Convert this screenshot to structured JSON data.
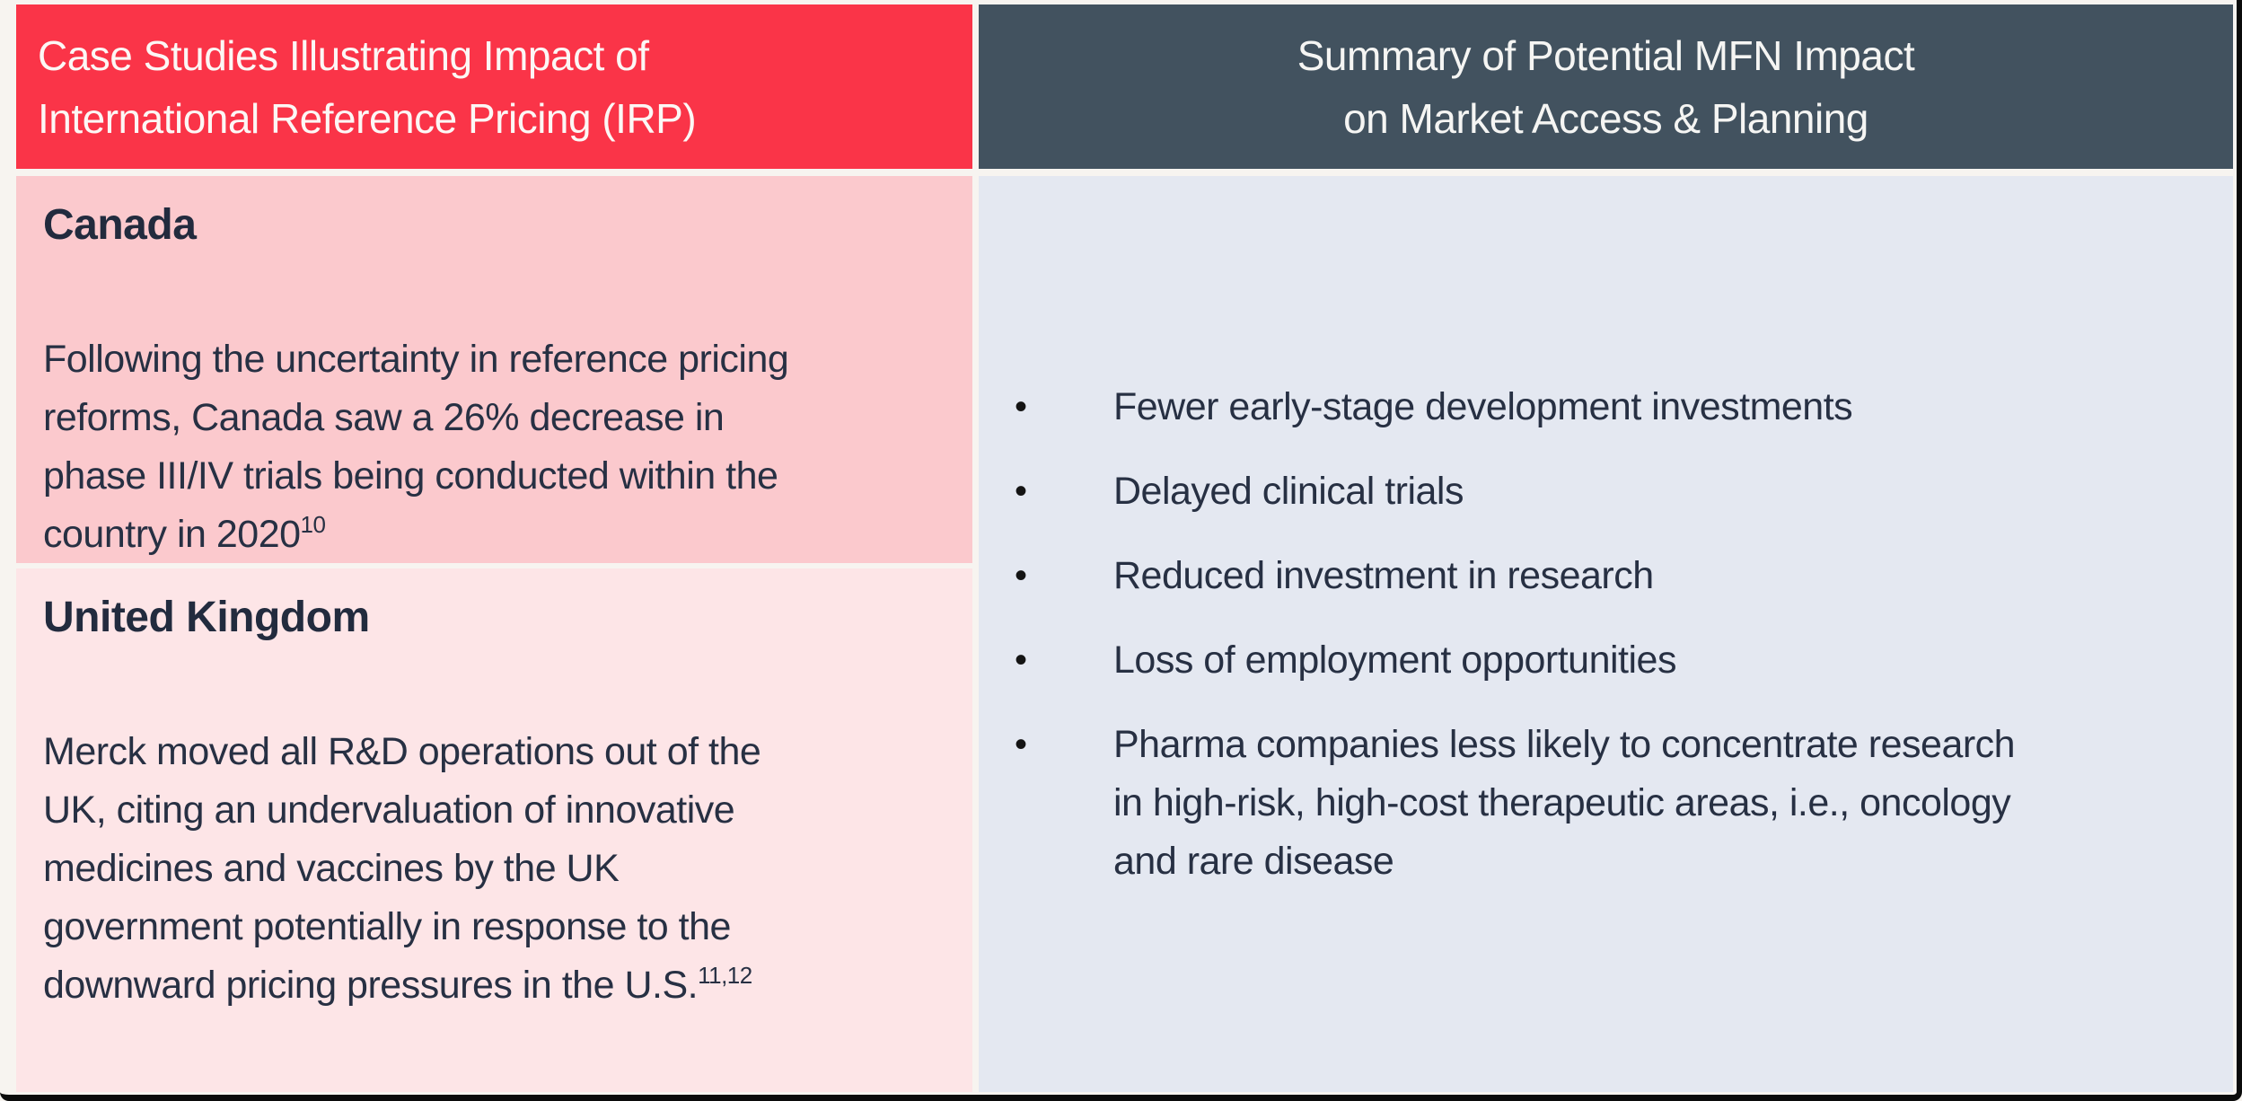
{
  "page": {
    "background": "#F7F4F0",
    "frame_color": "#0B0B0B"
  },
  "left_column": {
    "text_color": "#273043",
    "header": {
      "bg": "#FA3448",
      "text_color": "#FCF7F5",
      "lines": [
        "Case Studies Illustrating Impact of",
        "International Reference Pricing (IRP)"
      ]
    },
    "sections": [
      {
        "title": "Canada",
        "bg": "#FBC9CD",
        "lines": [
          "Following the uncertainty in reference pricing",
          "reforms, Canada saw a 26% decrease in",
          "phase III/IV trials being conducted within the",
          "country in 2020"
        ],
        "superscript": "10"
      },
      {
        "title": "United Kingdom",
        "bg": "#FDE5E7",
        "lines": [
          "Merck moved all R&D operations out of the",
          "UK, citing an undervaluation of innovative",
          "medicines and vaccines by the UK",
          "government potentially in response to the",
          "downward pricing pressures in the U.S."
        ],
        "superscript": "11,12"
      }
    ]
  },
  "right_column": {
    "header": {
      "bg": "#42525F",
      "text_color": "#F5F5F3",
      "lines": [
        "Summary of Potential MFN Impact",
        "on Market Access & Planning"
      ]
    },
    "panel_bg": "#E4E8F1",
    "bullet_glyph": "•",
    "bullets": [
      [
        "Fewer early-stage development investments"
      ],
      [
        "Delayed clinical trials"
      ],
      [
        "Reduced investment in research"
      ],
      [
        "Loss of employment opportunities"
      ],
      [
        "Pharma companies less likely to concentrate research",
        "in high-risk, high-cost therapeutic areas, i.e., oncology",
        "and rare disease"
      ]
    ]
  }
}
